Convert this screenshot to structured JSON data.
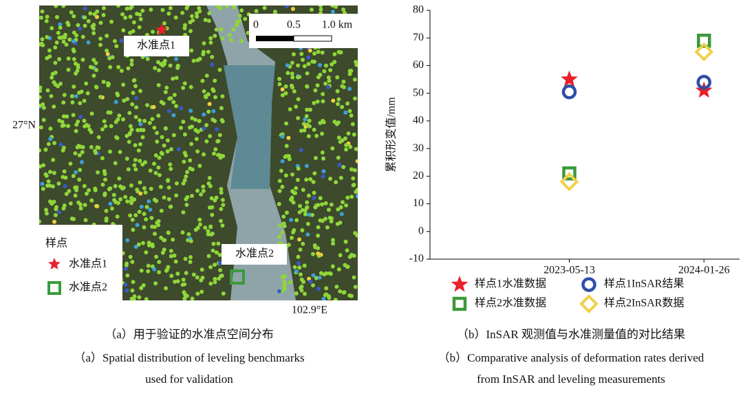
{
  "map": {
    "labels": [
      "水准点1",
      "水准点2"
    ],
    "scale": [
      "0",
      "0.5",
      "1.0 km"
    ],
    "lat_label": "27°N",
    "lon_label": "102.9°E",
    "legend": {
      "title": "样点",
      "items": [
        "水准点1",
        "水准点2"
      ]
    }
  },
  "chart_data": {
    "type": "scatter",
    "ylabel": "累积形变值/mm",
    "categories": [
      "2023-05-13",
      "2024-01-26"
    ],
    "series": [
      {
        "name": "样点1水准数据",
        "color": "#e8202a",
        "marker": "star",
        "values": [
          55,
          51
        ]
      },
      {
        "name": "样点1InSAR结果",
        "color": "#2f4ea8",
        "marker": "circle",
        "values": [
          50.5,
          54
        ]
      },
      {
        "name": "样点2水准数据",
        "color": "#3a9a3a",
        "marker": "square",
        "values": [
          21,
          69
        ]
      },
      {
        "name": "样点2InSAR数据",
        "color": "#f2cf4a",
        "marker": "diamond",
        "values": [
          18,
          65
        ]
      }
    ],
    "ylim": [
      -10,
      80
    ],
    "yticks": [
      -10,
      0,
      10,
      20,
      30,
      40,
      50,
      60,
      70,
      80
    ]
  },
  "captions": {
    "a_zh": "（a）用于验证的水准点空间分布",
    "a_en1": "（a）Spatial distribution of leveling benchmarks",
    "a_en2": "used for validation",
    "b_zh": "（b）InSAR 观测值与水准测量值的对比结果",
    "b_en1": "（b）Comparative analysis of deformation rates derived",
    "b_en2": "from InSAR and leveling measurements"
  }
}
